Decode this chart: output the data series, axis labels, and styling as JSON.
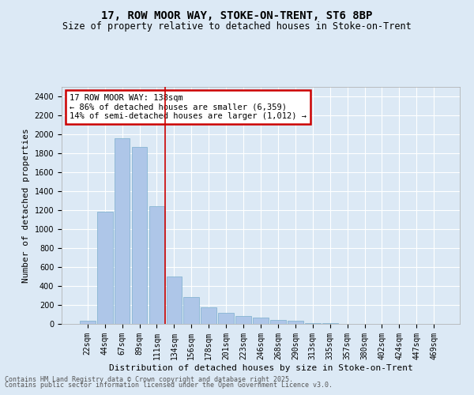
{
  "title": "17, ROW MOOR WAY, STOKE-ON-TRENT, ST6 8BP",
  "subtitle": "Size of property relative to detached houses in Stoke-on-Trent",
  "xlabel": "Distribution of detached houses by size in Stoke-on-Trent",
  "ylabel": "Number of detached properties",
  "categories": [
    "22sqm",
    "44sqm",
    "67sqm",
    "89sqm",
    "111sqm",
    "134sqm",
    "156sqm",
    "178sqm",
    "201sqm",
    "223sqm",
    "246sqm",
    "268sqm",
    "290sqm",
    "313sqm",
    "335sqm",
    "357sqm",
    "380sqm",
    "402sqm",
    "424sqm",
    "447sqm",
    "469sqm"
  ],
  "values": [
    30,
    1180,
    1960,
    1870,
    1240,
    500,
    280,
    175,
    120,
    80,
    65,
    45,
    30,
    10,
    5,
    3,
    2,
    1,
    1,
    0,
    0
  ],
  "bar_color": "#aec6e8",
  "bar_edge_color": "#7aaecc",
  "vline_x_index": 4.5,
  "vline_color": "#cc0000",
  "annotation_text": "17 ROW MOOR WAY: 138sqm\n← 86% of detached houses are smaller (6,359)\n14% of semi-detached houses are larger (1,012) →",
  "annotation_box_color": "#ffffff",
  "annotation_box_edge_color": "#cc0000",
  "ylim": [
    0,
    2500
  ],
  "yticks": [
    0,
    200,
    400,
    600,
    800,
    1000,
    1200,
    1400,
    1600,
    1800,
    2000,
    2200,
    2400
  ],
  "background_color": "#dce9f5",
  "plot_background": "#dce9f5",
  "footer_line1": "Contains HM Land Registry data © Crown copyright and database right 2025.",
  "footer_line2": "Contains public sector information licensed under the Open Government Licence v3.0.",
  "title_fontsize": 10,
  "subtitle_fontsize": 8.5,
  "axis_label_fontsize": 8,
  "tick_fontsize": 7,
  "annot_fontsize": 7.5
}
